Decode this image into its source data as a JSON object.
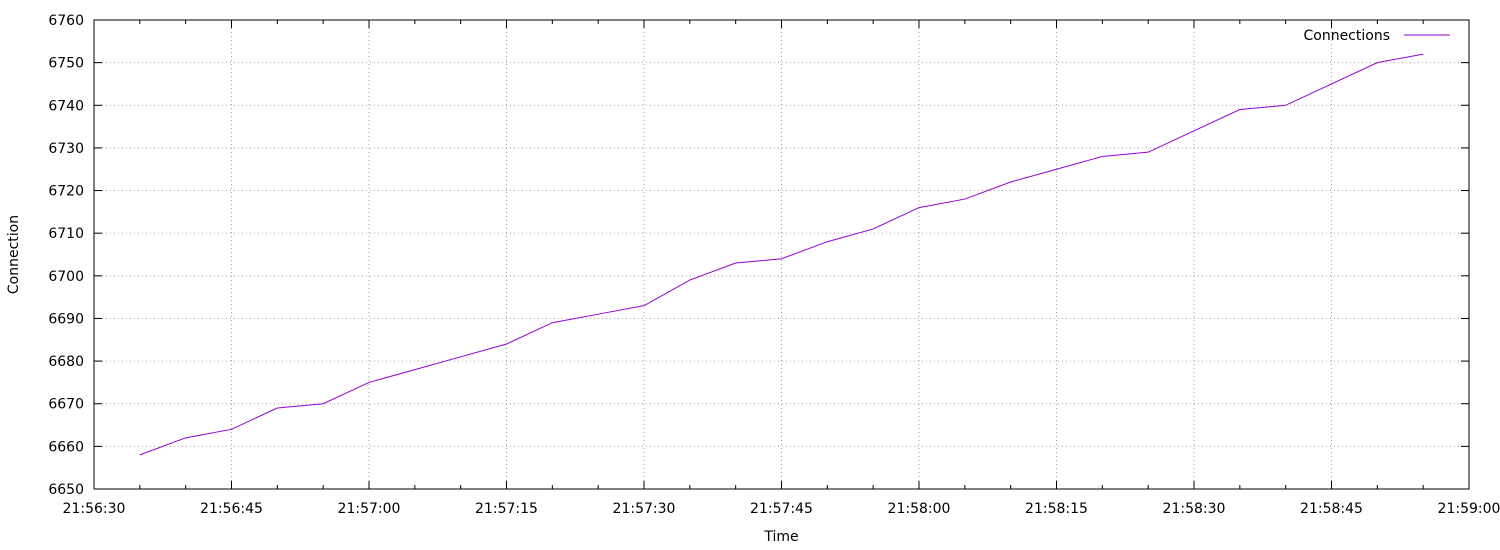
{
  "chart_data": {
    "type": "line",
    "xlabel": "Time",
    "ylabel": "Connection",
    "x_ticks": [
      "21:56:30",
      "21:56:45",
      "21:57:00",
      "21:57:15",
      "21:57:30",
      "21:57:45",
      "21:58:00",
      "21:58:15",
      "21:58:30",
      "21:58:45",
      "21:59:00"
    ],
    "y_ticks": [
      6650,
      6660,
      6670,
      6680,
      6690,
      6700,
      6710,
      6720,
      6730,
      6740,
      6750,
      6760
    ],
    "xlim": [
      "21:56:30",
      "21:59:00"
    ],
    "ylim": [
      6650,
      6760
    ],
    "grid": true,
    "legend_position": "top-right",
    "series": [
      {
        "name": "Connections",
        "color": "#9400d3",
        "x": [
          "21:56:35",
          "21:56:40",
          "21:56:45",
          "21:56:50",
          "21:56:55",
          "21:57:00",
          "21:57:05",
          "21:57:10",
          "21:57:15",
          "21:57:20",
          "21:57:25",
          "21:57:30",
          "21:57:35",
          "21:57:40",
          "21:57:45",
          "21:57:50",
          "21:57:55",
          "21:58:00",
          "21:58:05",
          "21:58:10",
          "21:58:15",
          "21:58:20",
          "21:58:25",
          "21:58:30",
          "21:58:35",
          "21:58:40",
          "21:58:45",
          "21:58:50",
          "21:58:55"
        ],
        "values": [
          6658,
          6662,
          6664,
          6669,
          6670,
          6675,
          6678,
          6681,
          6684,
          6689,
          6691,
          6693,
          6699,
          6703,
          6704,
          6708,
          6711,
          6716,
          6718,
          6722,
          6725,
          6728,
          6729,
          6734,
          6739,
          6740,
          6745,
          6750,
          6752
        ]
      }
    ]
  }
}
